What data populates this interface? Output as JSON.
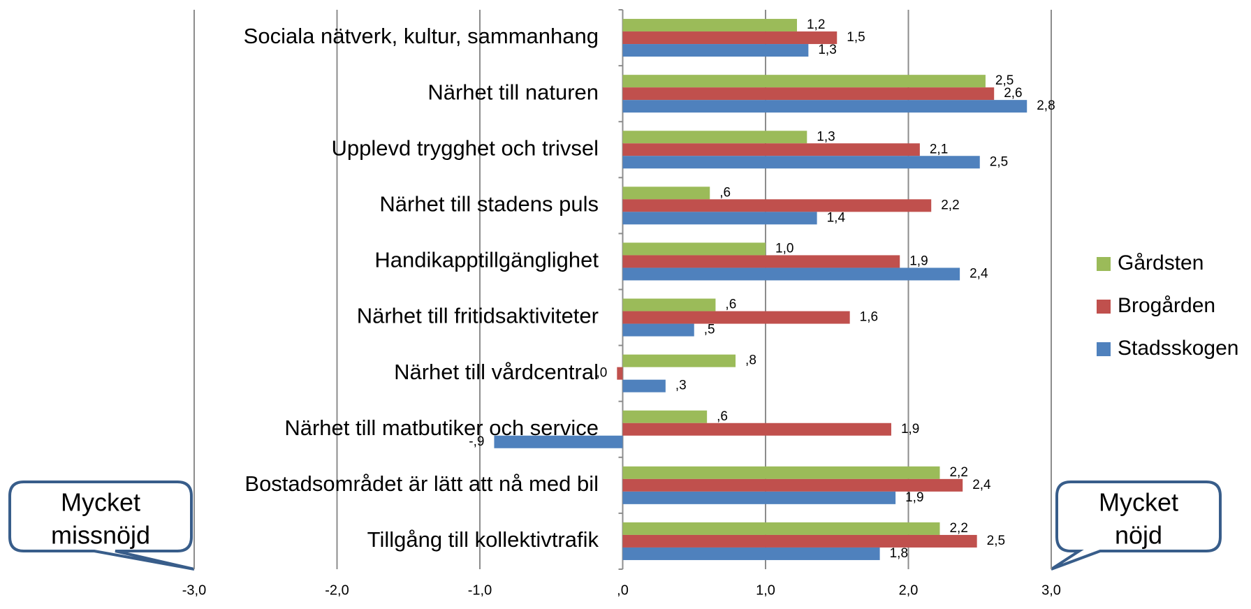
{
  "chart_data": {
    "type": "hbar",
    "categories": [
      "Sociala nätverk, kultur, sammanhang",
      "Närhet till naturen",
      "Upplevd trygghet och trivsel",
      "Närhet till stadens puls",
      "Handikapptillgänglighet",
      "Närhet till fritidsaktiviteter",
      "Närhet till vårdcentral",
      "Närhet till matbutiker och service",
      "Bostadsområdet är lätt att nå med bil",
      "Tillgång till kollektivtrafik"
    ],
    "series": [
      {
        "name": "Gårdsten",
        "color": "#9bbb59",
        "values": [
          1.22,
          2.54,
          1.29,
          0.61,
          1.0,
          0.65,
          0.79,
          0.59,
          2.22,
          2.22
        ],
        "value_labels": [
          "1,2",
          "2,5",
          "1,3",
          ",6",
          "1,0",
          ",6",
          ",8",
          ",6",
          "2,2",
          "2,2"
        ]
      },
      {
        "name": "Brogården",
        "color": "#c0504d",
        "values": [
          1.5,
          2.6,
          2.08,
          2.16,
          1.94,
          1.59,
          -0.04,
          1.88,
          2.38,
          2.48
        ],
        "value_labels": [
          "1,5",
          "2,6",
          "2,1",
          "2,2",
          "1,9",
          "1,6",
          ",0",
          "1,9",
          "2,4",
          "2,5"
        ]
      },
      {
        "name": "Stadsskogen",
        "color": "#4f81bd",
        "values": [
          1.3,
          2.83,
          2.5,
          1.36,
          2.36,
          0.5,
          0.3,
          -0.9,
          1.91,
          1.8
        ],
        "value_labels": [
          "1,3",
          "2,8",
          "2,5",
          "1,4",
          "2,4",
          ",5",
          ",3",
          "-,9",
          "1,9",
          "1,8"
        ]
      }
    ],
    "xlim": [
      -3,
      3
    ],
    "xticks": [
      {
        "value": -3,
        "label": "-3,0"
      },
      {
        "value": -2,
        "label": "-2,0"
      },
      {
        "value": -1,
        "label": "-1,0"
      },
      {
        "value": 0,
        "label": ",0"
      },
      {
        "value": 1,
        "label": "1,0"
      },
      {
        "value": 2,
        "label": "2,0"
      },
      {
        "value": 3,
        "label": "3,0"
      }
    ],
    "grid": true,
    "legend": "right",
    "annotations": [
      [
        "Mycket",
        "missnöjd"
      ],
      [
        "Mycket",
        "nöjd"
      ]
    ]
  }
}
